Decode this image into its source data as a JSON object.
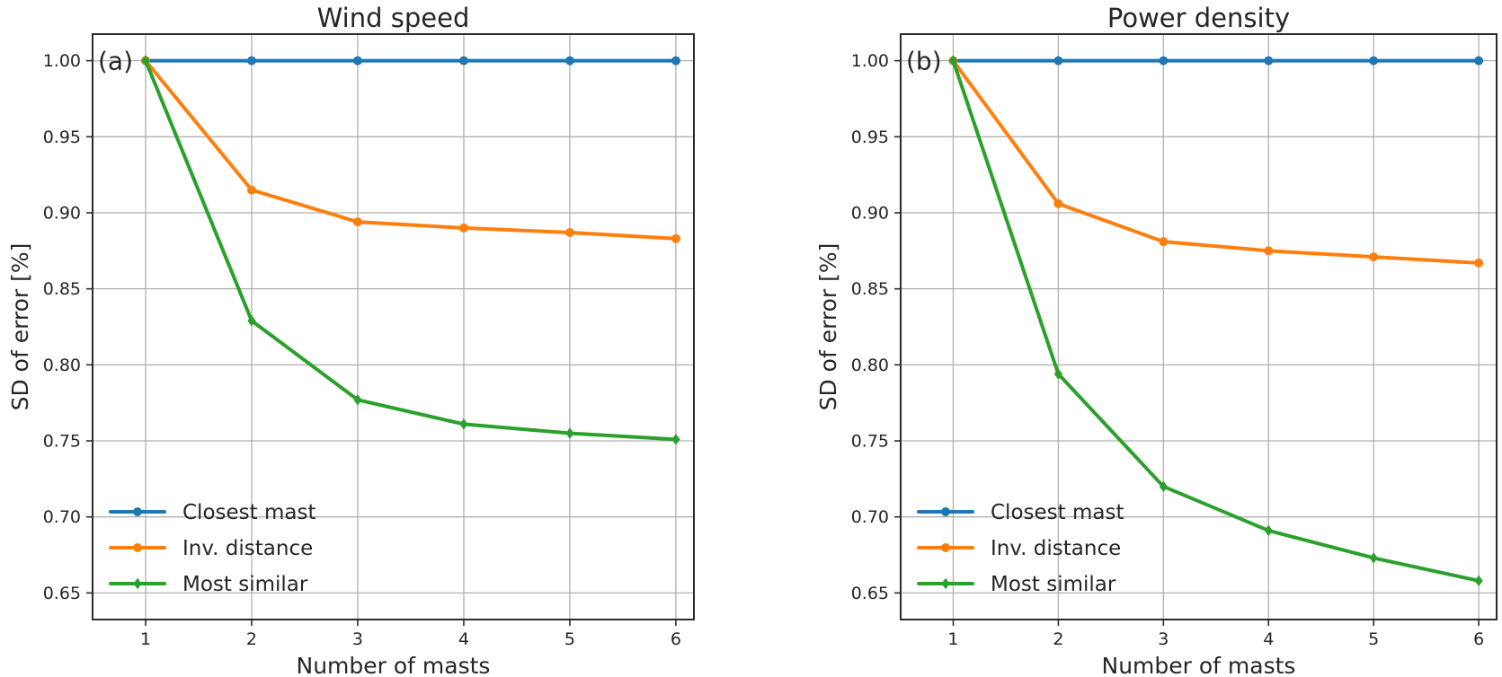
{
  "figure": {
    "background": "#ffffff",
    "text_color": "#262626",
    "grid_color": "#b0b0b0",
    "spine_color": "#2b2b2b"
  },
  "chart_data": [
    {
      "type": "line",
      "panel_label": "(a)",
      "title": "Wind speed",
      "xlabel": "Number of masts",
      "ylabel": "SD of error [%]",
      "x": [
        1,
        2,
        3,
        4,
        5,
        6
      ],
      "x_tick_labels": [
        "1",
        "2",
        "3",
        "4",
        "5",
        "6"
      ],
      "y_ticks": [
        0.65,
        0.7,
        0.75,
        0.8,
        0.85,
        0.9,
        0.95,
        1.0
      ],
      "y_tick_labels": [
        "0.65",
        "0.70",
        "0.75",
        "0.80",
        "0.85",
        "0.90",
        "0.95",
        "1.00"
      ],
      "xlim": [
        0.5,
        6.17
      ],
      "ylim": [
        0.6325,
        1.0175
      ],
      "grid": true,
      "legend_position": "lower left",
      "series": [
        {
          "name": "Closest mast",
          "color": "#1f77b4",
          "marker": "circle",
          "values": [
            1.0,
            1.0,
            1.0,
            1.0,
            1.0,
            1.0
          ]
        },
        {
          "name": "Inv. distance",
          "color": "#ff7f0e",
          "marker": "circle",
          "values": [
            1.0,
            0.915,
            0.894,
            0.89,
            0.887,
            0.883
          ]
        },
        {
          "name": "Most similar",
          "color": "#2ca02c",
          "marker": "diamond",
          "values": [
            1.0,
            0.829,
            0.777,
            0.761,
            0.755,
            0.751
          ]
        }
      ]
    },
    {
      "type": "line",
      "panel_label": "(b)",
      "title": "Power density",
      "xlabel": "Number of masts",
      "ylabel": "SD of error [%]",
      "x": [
        1,
        2,
        3,
        4,
        5,
        6
      ],
      "x_tick_labels": [
        "1",
        "2",
        "3",
        "4",
        "5",
        "6"
      ],
      "y_ticks": [
        0.65,
        0.7,
        0.75,
        0.8,
        0.85,
        0.9,
        0.95,
        1.0
      ],
      "y_tick_labels": [
        "0.65",
        "0.70",
        "0.75",
        "0.80",
        "0.85",
        "0.90",
        "0.95",
        "1.00"
      ],
      "xlim": [
        0.5,
        6.17
      ],
      "ylim": [
        0.6325,
        1.0175
      ],
      "grid": true,
      "legend_position": "lower left",
      "series": [
        {
          "name": "Closest mast",
          "color": "#1f77b4",
          "marker": "circle",
          "values": [
            1.0,
            1.0,
            1.0,
            1.0,
            1.0,
            1.0
          ]
        },
        {
          "name": "Inv. distance",
          "color": "#ff7f0e",
          "marker": "circle",
          "values": [
            1.0,
            0.906,
            0.881,
            0.875,
            0.871,
            0.867
          ]
        },
        {
          "name": "Most similar",
          "color": "#2ca02c",
          "marker": "diamond",
          "values": [
            1.0,
            0.794,
            0.72,
            0.691,
            0.673,
            0.658
          ]
        }
      ]
    }
  ]
}
